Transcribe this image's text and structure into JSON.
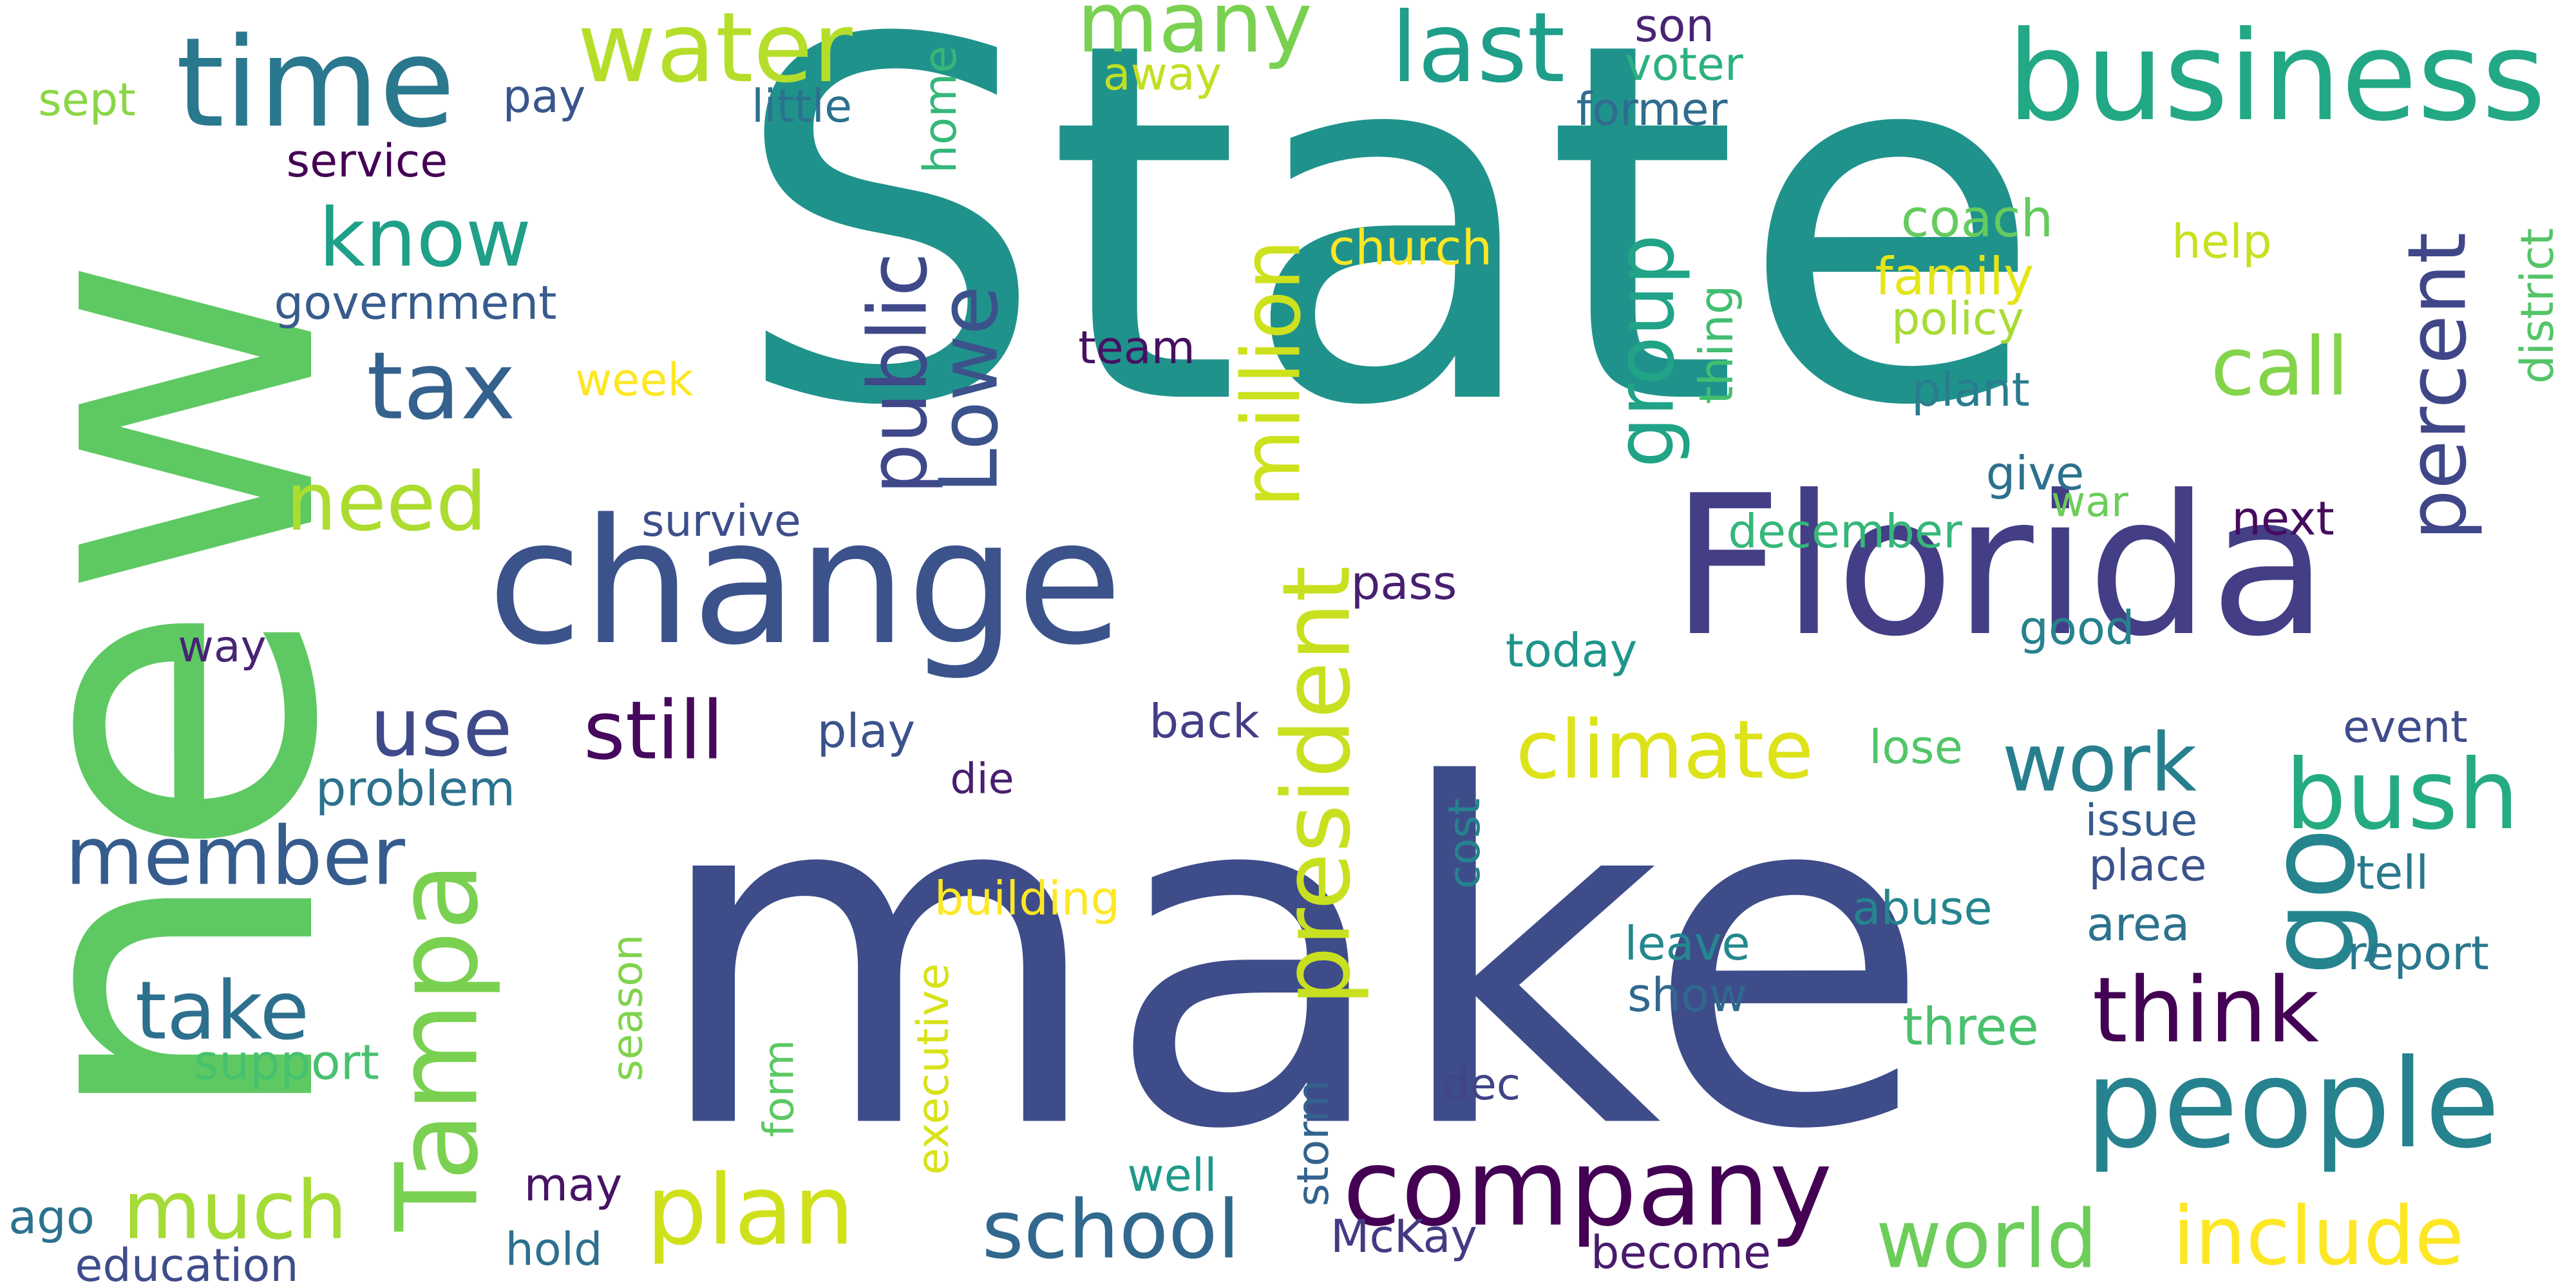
{
  "word_cloud": {
    "words": [
      {
        "text": "State",
        "color": "#20928c"
      },
      {
        "text": "make",
        "color": "#3e4c8a"
      },
      {
        "text": "new",
        "color": "#5ec962"
      },
      {
        "text": "Florida",
        "color": "#433e85"
      },
      {
        "text": "change",
        "color": "#3b528b"
      },
      {
        "text": "business",
        "color": "#22a884"
      },
      {
        "text": "time",
        "color": "#2a788e"
      },
      {
        "text": "water",
        "color": "#b5de2b"
      },
      {
        "text": "last",
        "color": "#1f9e89"
      },
      {
        "text": "many",
        "color": "#7ad151"
      },
      {
        "text": "people",
        "color": "#26828e"
      },
      {
        "text": "company",
        "color": "#440154"
      },
      {
        "text": "school",
        "color": "#31688e"
      },
      {
        "text": "include",
        "color": "#fde725"
      },
      {
        "text": "world",
        "color": "#6ccd5a"
      },
      {
        "text": "plan",
        "color": "#d0e11c"
      },
      {
        "text": "much",
        "color": "#a5db36"
      },
      {
        "text": "climate",
        "color": "#dde318"
      },
      {
        "text": "think",
        "color": "#440154"
      },
      {
        "text": "bush",
        "color": "#25ab82"
      },
      {
        "text": "work",
        "color": "#277f8e"
      },
      {
        "text": "still",
        "color": "#46085c"
      },
      {
        "text": "use",
        "color": "#3e4a89"
      },
      {
        "text": "know",
        "color": "#1fa088"
      },
      {
        "text": "tax",
        "color": "#34618d"
      },
      {
        "text": "need",
        "color": "#addc30"
      },
      {
        "text": "take",
        "color": "#2d708e"
      },
      {
        "text": "member",
        "color": "#365c8d"
      },
      {
        "text": "call",
        "color": "#84d44b"
      },
      {
        "text": "go",
        "color": "#25848e"
      },
      {
        "text": "Tampa",
        "color": "#7ad151"
      },
      {
        "text": "president",
        "color": "#c8e020"
      },
      {
        "text": "million",
        "color": "#cde11d"
      },
      {
        "text": "public",
        "color": "#3f4889"
      },
      {
        "text": "Lowe",
        "color": "#3b528b"
      },
      {
        "text": "group",
        "color": "#20a386"
      },
      {
        "text": "percent",
        "color": "#3f4788"
      },
      {
        "text": "sept",
        "color": "#8bd646"
      },
      {
        "text": "pay",
        "color": "#39568c"
      },
      {
        "text": "service",
        "color": "#440154"
      },
      {
        "text": "government",
        "color": "#375b8d"
      },
      {
        "text": "week",
        "color": "#fde725"
      },
      {
        "text": "little",
        "color": "#2c718e"
      },
      {
        "text": "away",
        "color": "#c2df23"
      },
      {
        "text": "son",
        "color": "#482475"
      },
      {
        "text": "voter",
        "color": "#2cb17e"
      },
      {
        "text": "former",
        "color": "#2f6c8e"
      },
      {
        "text": "home",
        "color": "#35b779"
      },
      {
        "text": "coach",
        "color": "#65cb5e"
      },
      {
        "text": "church",
        "color": "#fde725"
      },
      {
        "text": "family",
        "color": "#e5e419"
      },
      {
        "text": "policy",
        "color": "#a8db34"
      },
      {
        "text": "help",
        "color": "#c8e020"
      },
      {
        "text": "team",
        "color": "#471063"
      },
      {
        "text": "thing",
        "color": "#42be71"
      },
      {
        "text": "plant",
        "color": "#287d8e"
      },
      {
        "text": "district",
        "color": "#54c568"
      },
      {
        "text": "give",
        "color": "#2d708e"
      },
      {
        "text": "war",
        "color": "#6ccd5a"
      },
      {
        "text": "next",
        "color": "#460b5e"
      },
      {
        "text": "survive",
        "color": "#3d4e8a"
      },
      {
        "text": "december",
        "color": "#35b779"
      },
      {
        "text": "pass",
        "color": "#481f70"
      },
      {
        "text": "way",
        "color": "#482475"
      },
      {
        "text": "today",
        "color": "#1f958b"
      },
      {
        "text": "good",
        "color": "#26828e"
      },
      {
        "text": "back",
        "color": "#433e85"
      },
      {
        "text": "play",
        "color": "#3b528b"
      },
      {
        "text": "die",
        "color": "#481f70"
      },
      {
        "text": "lose",
        "color": "#52c569"
      },
      {
        "text": "event",
        "color": "#3e4c8a"
      },
      {
        "text": "issue",
        "color": "#365c8d"
      },
      {
        "text": "problem",
        "color": "#2c728e"
      },
      {
        "text": "cost",
        "color": "#26828e"
      },
      {
        "text": "place",
        "color": "#3b528b"
      },
      {
        "text": "tell",
        "color": "#2a788e"
      },
      {
        "text": "abuse",
        "color": "#25858e"
      },
      {
        "text": "area",
        "color": "#2c728e"
      },
      {
        "text": "building",
        "color": "#fde725"
      },
      {
        "text": "report",
        "color": "#2a788e"
      },
      {
        "text": "leave",
        "color": "#23888e"
      },
      {
        "text": "show",
        "color": "#31688e"
      },
      {
        "text": "three",
        "color": "#4ac16d"
      },
      {
        "text": "support",
        "color": "#48c16e"
      },
      {
        "text": "season",
        "color": "#81d34d"
      },
      {
        "text": "executive",
        "color": "#d8e219"
      },
      {
        "text": "form",
        "color": "#5cc863"
      },
      {
        "text": "storm",
        "color": "#33638d"
      },
      {
        "text": "dec",
        "color": "#414487"
      },
      {
        "text": "ago",
        "color": "#2c728e"
      },
      {
        "text": "may",
        "color": "#471365"
      },
      {
        "text": "education",
        "color": "#3e4c8a"
      },
      {
        "text": "hold",
        "color": "#2d708e"
      },
      {
        "text": "well",
        "color": "#1f998a"
      },
      {
        "text": "McKay",
        "color": "#443a83"
      },
      {
        "text": "become",
        "color": "#481a6c"
      }
    ]
  }
}
